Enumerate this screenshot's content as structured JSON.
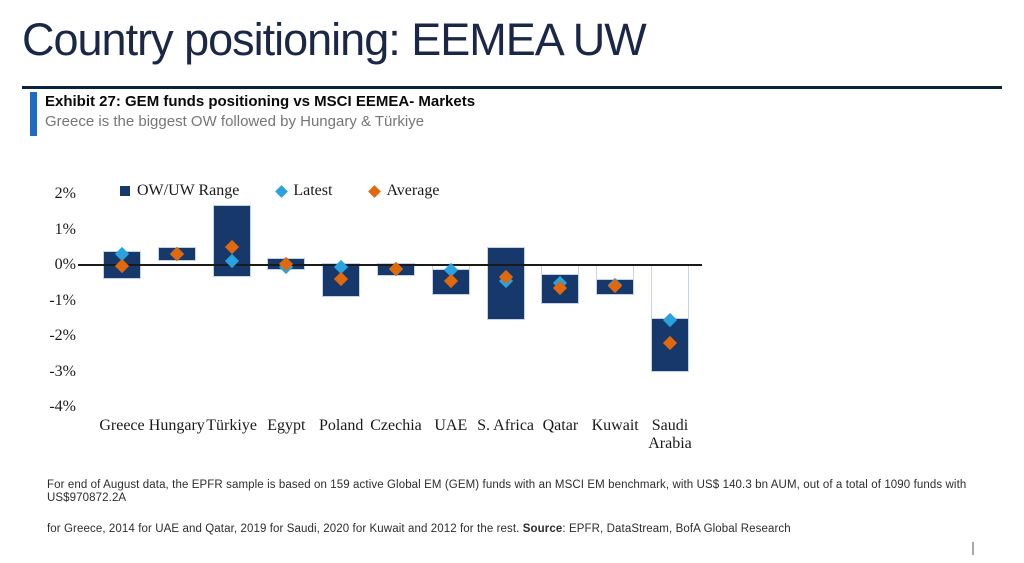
{
  "header": {
    "title": "Country positioning: EEMEA UW"
  },
  "exhibit": {
    "title": "Exhibit 27: GEM funds positioning vs MSCI EEMEA- Markets",
    "subtitle": "Greece is the biggest OW followed by Hungary & Türkiye"
  },
  "footnote": {
    "line1": "For end of August data, the EPFR sample is based on 159 active Global EM (GEM) funds with an MSCI EM benchmark, with US$ 140.3 bn AUM, out of a total of 1090 funds with US$970872.2A",
    "line2_prefix": "for Greece, 2014 for UAE and Qatar, 2019 for Saudi, 2020 for Kuwait and 2012 for the rest. ",
    "source_label": "Source",
    "line2_rest": ": EPFR, DataStream, BofA Global Research"
  },
  "colors": {
    "bar_navy": "#17386b",
    "bar_border": "#c3d2e8",
    "latest_blue": "#29a3e0",
    "average_orange": "#e2680c",
    "axis_black": "#1a1a1a",
    "header_navy": "#0c2340",
    "exhibit_accent_blue": "#1f6ac6",
    "subtitle_gray": "#767676"
  },
  "chart_data": {
    "type": "bar",
    "subtype": "floating hi-lo range bars with diamond point markers",
    "title": "",
    "xlabel": "",
    "ylabel": "",
    "ylim": [
      -4,
      2
    ],
    "y_tick_values": [
      2,
      1,
      0,
      -1,
      -2,
      -3,
      -4
    ],
    "y_tick_labels": [
      "2%",
      "1%",
      "0%",
      "-1%",
      "-2%",
      "-3%",
      "-4%"
    ],
    "grid": false,
    "legend_position": "top-left inside plot",
    "legend": [
      {
        "label": "OW/UW Range",
        "marker": "square",
        "color": "#17386b"
      },
      {
        "label": "Latest",
        "marker": "diamond",
        "color": "#29a3e0"
      },
      {
        "label": "Average",
        "marker": "diamond",
        "color": "#e2680c"
      }
    ],
    "categories": [
      "Greece",
      "Hungary",
      "Türkiye",
      "Egypt",
      "Poland",
      "Czechia",
      "UAE",
      "S. Africa",
      "Qatar",
      "Kuwait",
      "Saudi Arabia"
    ],
    "series": [
      {
        "name": "OW/UW Range",
        "type": "range",
        "unit": "%",
        "values": [
          [
            -0.4,
            0.4
          ],
          [
            0.1,
            0.5
          ],
          [
            -0.35,
            1.7
          ],
          [
            -0.15,
            0.2
          ],
          [
            -0.9,
            0.05
          ],
          [
            -0.3,
            0.05
          ],
          [
            -0.85,
            -0.1
          ],
          [
            -1.55,
            0.5
          ],
          [
            -1.1,
            -0.25
          ],
          [
            -0.85,
            -0.4
          ],
          [
            -3.0,
            -1.5
          ]
        ]
      },
      {
        "name": "Latest",
        "type": "point",
        "unit": "%",
        "values": [
          0.3,
          0.3,
          0.1,
          -0.05,
          -0.05,
          -0.1,
          -0.15,
          -0.45,
          -0.5,
          -0.55,
          -1.55
        ]
      },
      {
        "name": "Average",
        "type": "point",
        "unit": "%",
        "values": [
          -0.03,
          0.3,
          0.5,
          0.02,
          -0.4,
          -0.1,
          -0.45,
          -0.33,
          -0.65,
          -0.6,
          -2.2
        ]
      }
    ]
  }
}
